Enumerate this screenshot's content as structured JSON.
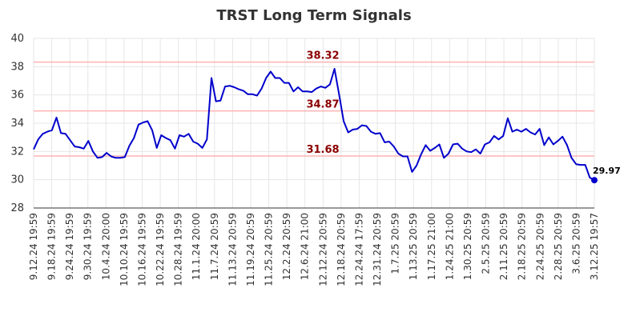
{
  "chart_data": {
    "type": "line",
    "title": "TRST Long Term Signals",
    "xlabel": "",
    "ylabel": "",
    "ylim": [
      28,
      40
    ],
    "grid": true,
    "y_ticks": [
      28,
      30,
      32,
      34,
      36,
      38,
      40
    ],
    "x_ticks": [
      "9.12.24 19:59",
      "9.18.24 19:59",
      "9.24.24 19:59",
      "9.30.24 19:59",
      "10.4.24 20:00",
      "10.10.24 19:59",
      "10.16.24 19:59",
      "10.22.24 19:59",
      "10.28.24 19:59",
      "11.1.24 20:00",
      "11.7.24 20:59",
      "11.13.24 20:59",
      "11.19.24 20:59",
      "11.25.24 20:59",
      "12.2.24 20:59",
      "12.6.24 21:00",
      "12.12.24 20:59",
      "12.18.24 20:59",
      "12.24.24 17:59",
      "12.31.24 20:59",
      "1.7.25 20:59",
      "1.13.25 20:59",
      "1.17.25 21:00",
      "1.24.25 21:00",
      "1.30.25 20:59",
      "2.5.25 20:59",
      "2.11.25 20:59",
      "2.18.25 20:59",
      "2.24.25 20:59",
      "2.28.25 20:59",
      "3.6.25 20:59",
      "3.12.25 19:57"
    ],
    "colors": {
      "line": "#0000cc",
      "hline": "#ffb3b3",
      "hline_label": "#8b0000",
      "grid": "#e6e6e6"
    },
    "horizontal_lines": [
      {
        "value": 38.32,
        "label": "38.32"
      },
      {
        "value": 34.87,
        "label": "34.87"
      },
      {
        "value": 31.68,
        "label": "31.68"
      }
    ],
    "last_point": {
      "value": 29.97,
      "label": "29.97"
    },
    "series": [
      {
        "values": [
          32.15,
          32.85,
          33.25,
          33.4,
          33.5,
          34.4,
          33.3,
          33.25,
          32.8,
          32.35,
          32.3,
          32.2,
          32.75,
          32.0,
          31.55,
          31.6,
          31.9,
          31.65,
          31.55,
          31.55,
          31.6,
          32.4,
          32.95,
          33.9,
          34.05,
          34.15,
          33.5,
          32.25,
          33.15,
          32.95,
          32.8,
          32.2,
          33.15,
          33.05,
          33.25,
          32.7,
          32.55,
          32.25,
          32.85,
          37.2,
          35.55,
          35.6,
          36.6,
          36.65,
          36.55,
          36.4,
          36.3,
          36.05,
          36.05,
          35.95,
          36.45,
          37.2,
          37.65,
          37.2,
          37.2,
          36.85,
          36.85,
          36.25,
          36.55,
          36.25,
          36.25,
          36.2,
          36.45,
          36.6,
          36.5,
          36.75,
          37.85,
          36.05,
          34.15,
          33.35,
          33.55,
          33.6,
          33.85,
          33.8,
          33.4,
          33.25,
          33.3,
          32.65,
          32.7,
          32.35,
          31.85,
          31.65,
          31.65,
          30.55,
          31.0,
          31.8,
          32.45,
          32.05,
          32.25,
          32.5,
          31.55,
          31.85,
          32.5,
          32.55,
          32.2,
          32.0,
          31.95,
          32.15,
          31.85,
          32.5,
          32.65,
          33.1,
          32.85,
          33.1,
          34.35,
          33.4,
          33.55,
          33.4,
          33.6,
          33.35,
          33.2,
          33.6,
          32.45,
          33.0,
          32.5,
          32.75,
          33.05,
          32.45,
          31.55,
          31.1,
          31.05,
          31.05,
          30.15,
          29.97
        ]
      }
    ]
  }
}
